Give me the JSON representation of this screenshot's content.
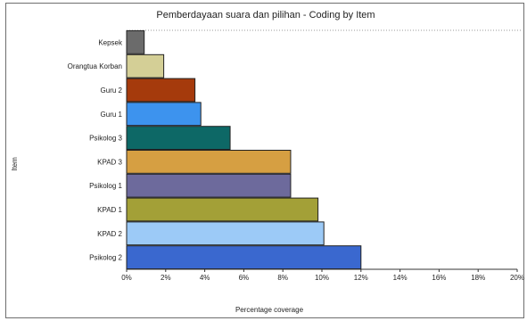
{
  "chart_data": {
    "type": "bar",
    "orientation": "horizontal",
    "title": "Pemberdayaan suara dan pilihan - Coding by Item",
    "xlabel": "Percentage coverage",
    "ylabel": "Item",
    "xlim": [
      0,
      20
    ],
    "x_ticks": [
      "0%",
      "2%",
      "4%",
      "6%",
      "8%",
      "10%",
      "12%",
      "14%",
      "16%",
      "18%",
      "20%"
    ],
    "grid": false,
    "categories": [
      "Kepsek",
      "Orangtua Korban",
      "Guru 2",
      "Guru 1",
      "Psikolog 3",
      "KPAD 3",
      "Psikolog 1",
      "KPAD 1",
      "KPAD 2",
      "Psikolog 2"
    ],
    "values": [
      0.9,
      1.9,
      3.5,
      3.8,
      5.3,
      8.4,
      8.4,
      9.8,
      10.1,
      12.0
    ],
    "colors": [
      "#6b6b6b",
      "#d4cf96",
      "#a53a0c",
      "#3d93ee",
      "#0d6866",
      "#d69f42",
      "#6d6a9c",
      "#a3a037",
      "#9ccaf7",
      "#3a68cf"
    ]
  }
}
